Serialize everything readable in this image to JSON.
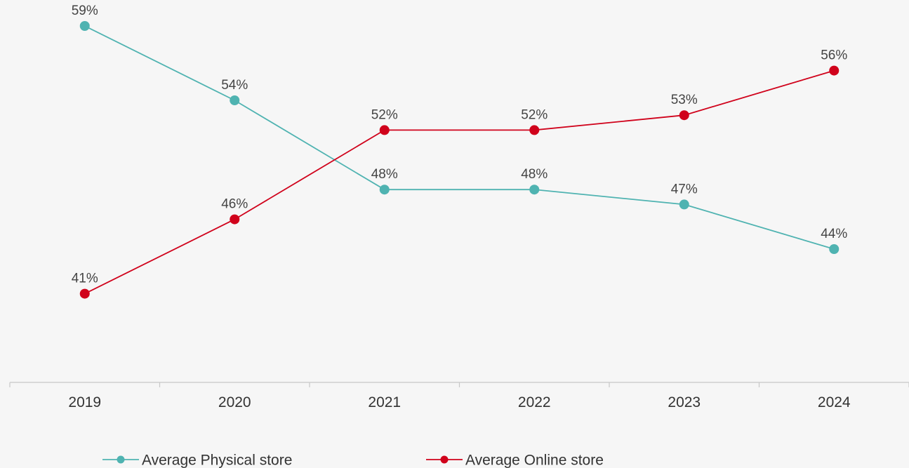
{
  "chart_data": {
    "type": "line",
    "title": "",
    "xlabel": "",
    "ylabel": "",
    "categories": [
      "2019",
      "2020",
      "2021",
      "2022",
      "2023",
      "2024"
    ],
    "ylim": [
      30,
      60
    ],
    "grid": false,
    "legend_position": "bottom",
    "series": [
      {
        "name": "Average Physical store",
        "color": "#4fb3b1",
        "values": [
          59,
          54,
          48,
          48,
          47,
          44
        ],
        "labels": [
          "59%",
          "54%",
          "48%",
          "48%",
          "47%",
          "44%"
        ]
      },
      {
        "name": "Average Online store",
        "color": "#d0021b",
        "values": [
          41,
          46,
          52,
          52,
          53,
          56
        ],
        "labels": [
          "41%",
          "46%",
          "52%",
          "52%",
          "53%",
          "56%"
        ]
      }
    ]
  }
}
